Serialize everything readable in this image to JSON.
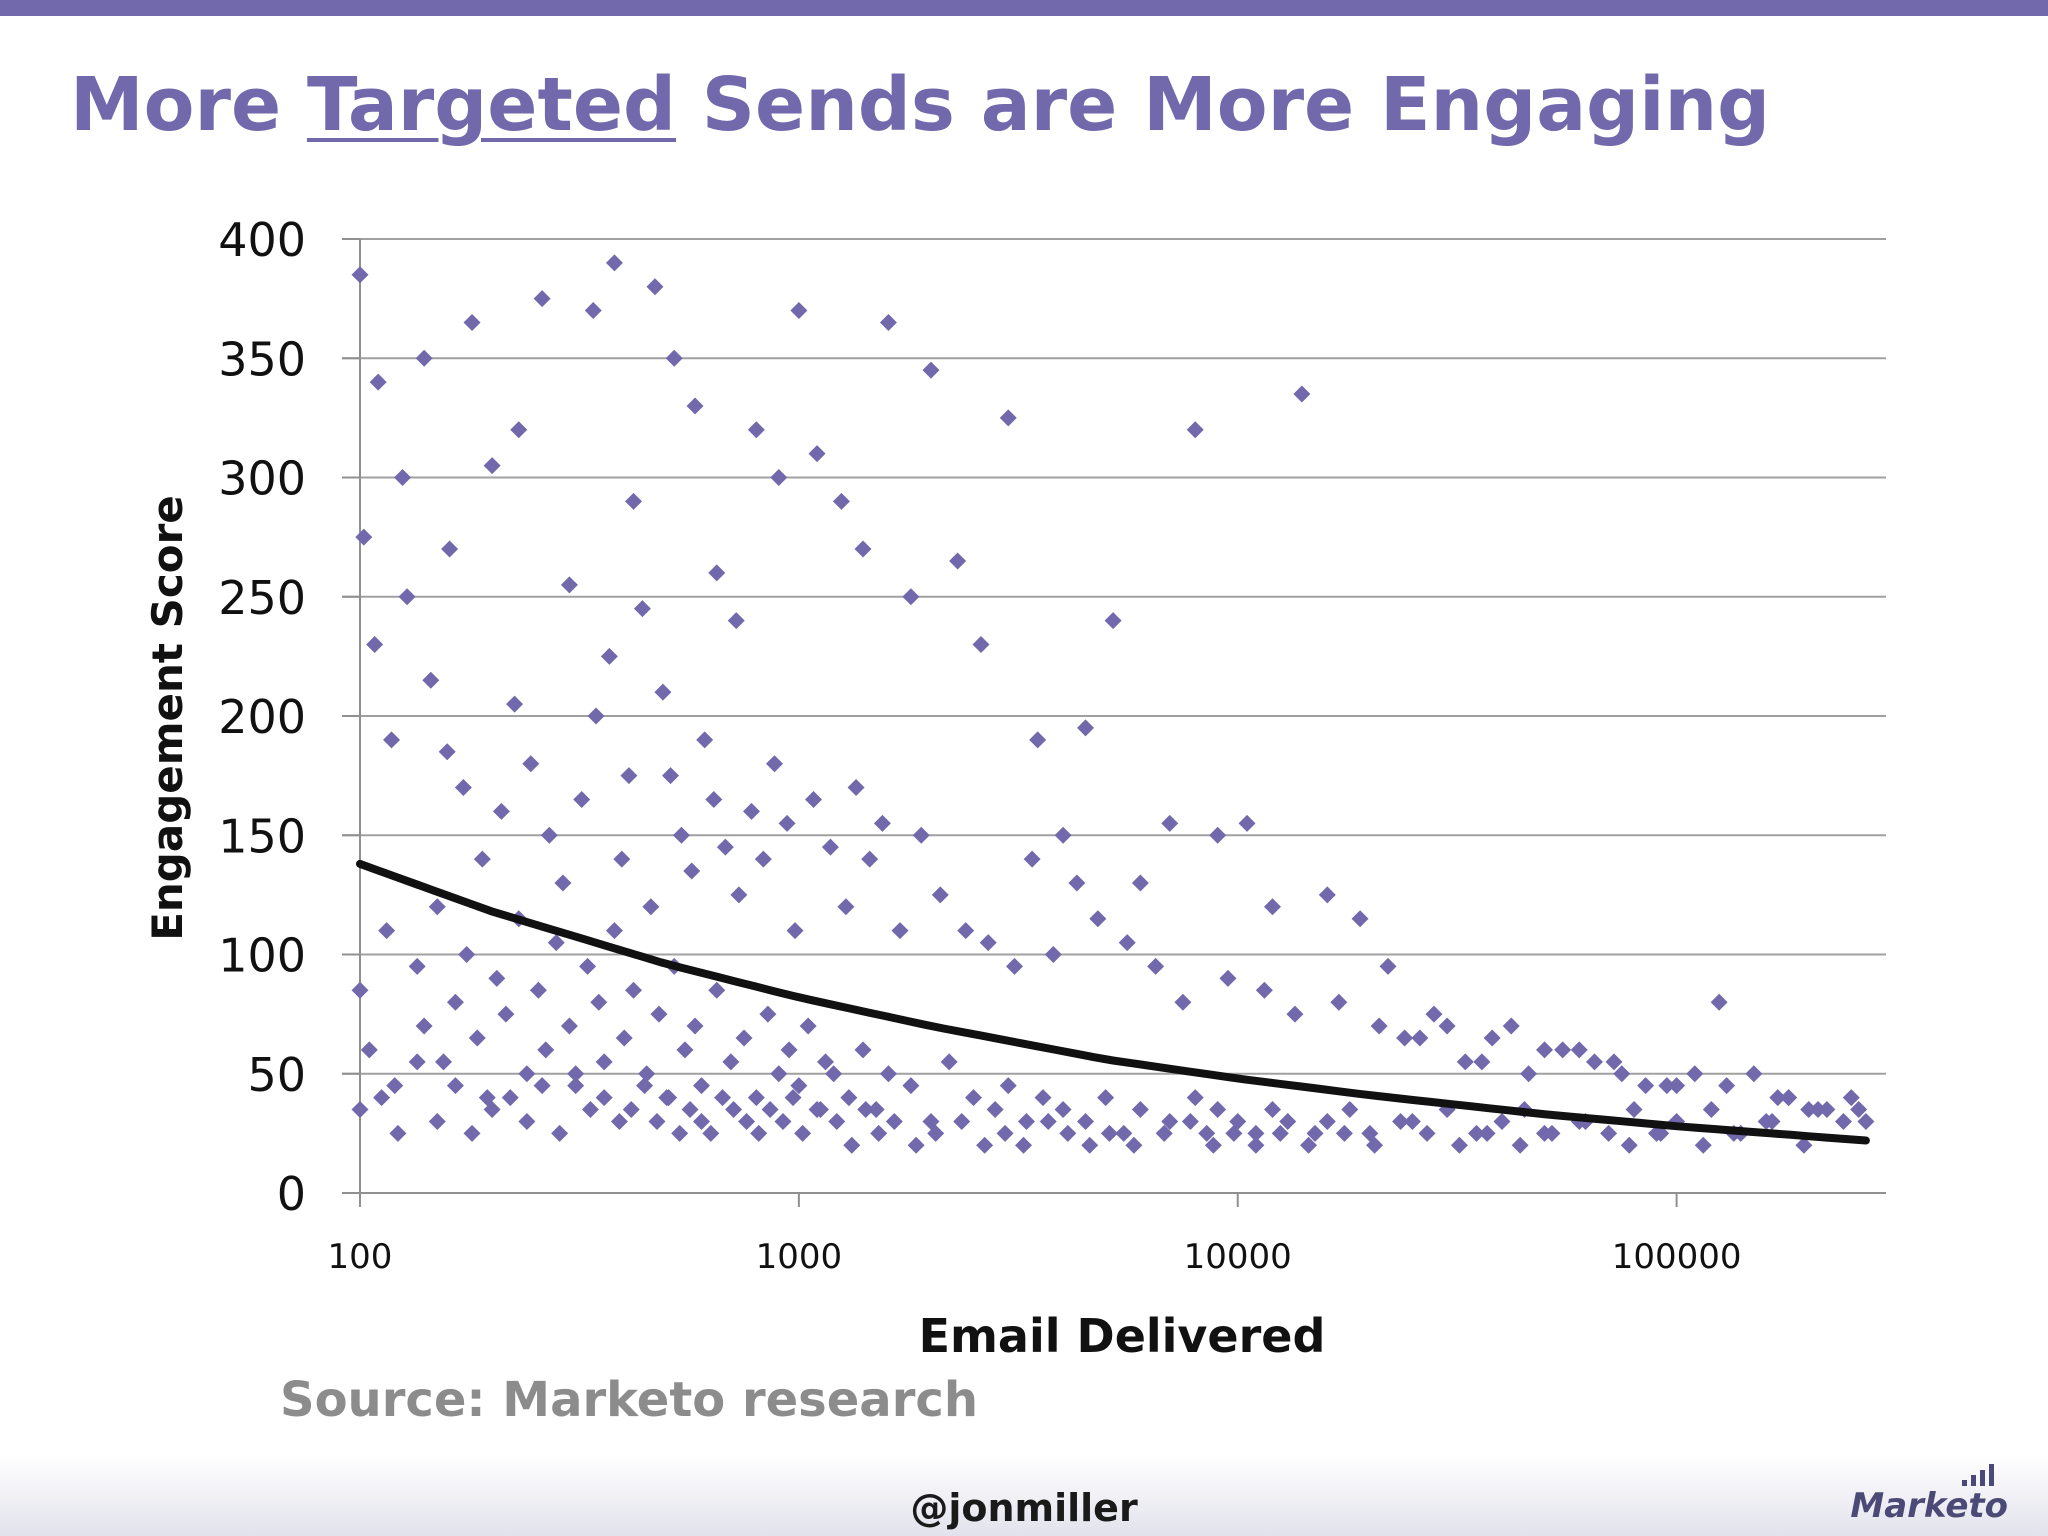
{
  "slide": {
    "title_pre": "More ",
    "title_emph": "Targeted",
    "title_post": " Sends are More Engaging",
    "source": "Source: Marketo research",
    "handle": "@jonmiller",
    "brand": "Marketo",
    "brand_mark": "Marketo logo bars"
  },
  "colors": {
    "accent": "#7269ad",
    "marker": "#7269ad",
    "trend": "#111111",
    "grid": "#a0a0a0"
  },
  "chart_data": {
    "type": "scatter",
    "xscale": "log",
    "xlabel": "Email Delivered",
    "ylabel": "Engagement Score",
    "xlim": [
      100,
      300000
    ],
    "ylim": [
      0,
      400
    ],
    "xticks": [
      100,
      1000,
      10000,
      100000
    ],
    "xtick_labels": [
      "100",
      "1000",
      "10000",
      "100000"
    ],
    "yticks": [
      0,
      50,
      100,
      150,
      200,
      250,
      300,
      350,
      400
    ],
    "ytick_labels": [
      "0",
      "50",
      "100",
      "150",
      "200",
      "250",
      "300",
      "350",
      "400"
    ],
    "grid": "horizontal",
    "legend": "none",
    "series": [
      {
        "marker": "diamond",
        "x": [
          100,
          105,
          115,
          120,
          135,
          140,
          150,
          155,
          165,
          175,
          185,
          195,
          205,
          215,
          230,
          240,
          255,
          265,
          280,
          300,
          310,
          330,
          350,
          360,
          380,
          400,
          420,
          450,
          480,
          500,
          520,
          550,
          580,
          600,
          650,
          700,
          750,
          800,
          850,
          900,
          950,
          1000,
          1050,
          1100,
          1150,
          1200,
          1300,
          1400,
          1500,
          1600,
          1800,
          2000,
          2200,
          2500,
          2800,
          3000,
          3300,
          3600,
          4000,
          4500,
          5000,
          5500,
          6000,
          7000,
          8000,
          8500,
          9000,
          10000,
          11000,
          12000,
          13000,
          15000,
          16000,
          18000,
          20000,
          25000,
          30000,
          35000,
          40000,
          45000,
          50000,
          60000,
          70000,
          80000,
          90000,
          100000,
          120000,
          140000,
          160000,
          180000,
          200000,
          250000,
          100,
          110,
          125,
          140,
          160,
          180,
          200,
          230,
          260,
          300,
          340,
          380,
          420,
          470,
          520,
          580,
          650,
          720,
          800,
          900,
          1000,
          1100,
          1250,
          1400,
          1600,
          1800,
          2000,
          2300,
          2600,
          3000,
          3500,
          4000,
          4500,
          5200,
          6000,
          7000,
          8000,
          9000,
          10500,
          12000,
          14000,
          16000,
          19000,
          22000,
          26000,
          30000,
          36000,
          42000,
          50000,
          60000,
          72000,
          85000,
          100000,
          125000,
          150000,
          180000,
          220000,
          270000,
          102,
          108,
          118,
          128,
          145,
          158,
          172,
          190,
          210,
          225,
          245,
          270,
          290,
          320,
          345,
          370,
          395,
          410,
          440,
          460,
          490,
          510,
          540,
          570,
          610,
          640,
          680,
          730,
          780,
          830,
          880,
          940,
          980,
          1080,
          1180,
          1280,
          1350,
          1450,
          1550,
          1700,
          1900,
          2100,
          2400,
          2700,
          3100,
          3400,
          3800,
          4300,
          4800,
          5600,
          6500,
          7500,
          9500,
          11500,
          13500,
          17000,
          21000,
          24000,
          28000,
          33000,
          38000,
          46000,
          55000,
          65000,
          75000,
          95000,
          110000,
          130000,
          170000,
          210000,
          240000,
          100,
          112,
          122,
          135,
          150,
          165,
          180,
          200,
          220,
          240,
          260,
          285,
          310,
          335,
          360,
          390,
          415,
          445,
          475,
          505,
          535,
          565,
          600,
          630,
          670,
          710,
          760,
          810,
          860,
          920,
          970,
          1020,
          1120,
          1220,
          1320,
          1420,
          1520,
          1650,
          1850,
          2050,
          2350,
          2650,
          2950,
          3250,
          3700,
          4100,
          4600,
          5100,
          5800,
          6800,
          7800,
          8800,
          9800,
          11000,
          12500,
          14500,
          17500,
          20500,
          23500,
          27000,
          32000,
          37000,
          44000,
          52000,
          62000,
          78000,
          92000,
          115000,
          135000,
          165000,
          195000,
          260000
        ],
        "y": [
          85,
          60,
          110,
          45,
          95,
          70,
          120,
          55,
          80,
          100,
          65,
          40,
          90,
          75,
          115,
          50,
          85,
          60,
          105,
          70,
          45,
          95,
          80,
          55,
          110,
          65,
          85,
          50,
          75,
          40,
          95,
          60,
          70,
          45,
          85,
          55,
          65,
          40,
          75,
          50,
          60,
          45,
          70,
          35,
          55,
          50,
          40,
          60,
          35,
          50,
          45,
          30,
          55,
          40,
          35,
          45,
          30,
          40,
          35,
          30,
          40,
          25,
          35,
          30,
          40,
          25,
          35,
          30,
          25,
          35,
          30,
          25,
          30,
          35,
          25,
          30,
          35,
          25,
          30,
          35,
          25,
          30,
          25,
          35,
          25,
          30,
          35,
          25,
          30,
          40,
          35,
          40,
          385,
          340,
          300,
          350,
          270,
          365,
          305,
          320,
          375,
          255,
          370,
          390,
          290,
          380,
          350,
          330,
          260,
          240,
          320,
          300,
          370,
          310,
          290,
          270,
          365,
          250,
          345,
          265,
          230,
          325,
          190,
          150,
          195,
          240,
          130,
          155,
          320,
          150,
          155,
          120,
          335,
          125,
          115,
          95,
          65,
          70,
          55,
          70,
          60,
          60,
          55,
          45,
          45,
          80,
          50,
          40,
          35,
          30,
          275,
          230,
          190,
          250,
          215,
          185,
          170,
          140,
          160,
          205,
          180,
          150,
          130,
          165,
          200,
          225,
          140,
          175,
          245,
          120,
          210,
          175,
          150,
          135,
          190,
          165,
          145,
          125,
          160,
          140,
          180,
          155,
          110,
          165,
          145,
          120,
          170,
          140,
          155,
          110,
          150,
          125,
          110,
          105,
          95,
          140,
          100,
          130,
          115,
          105,
          95,
          80,
          90,
          85,
          75,
          80,
          70,
          65,
          75,
          55,
          65,
          50,
          60,
          55,
          50,
          45,
          50,
          45,
          40,
          35,
          30,
          35,
          40,
          25,
          55,
          30,
          45,
          25,
          35,
          40,
          30,
          45,
          25,
          50,
          35,
          40,
          30,
          35,
          45,
          30,
          40,
          25,
          35,
          30,
          25,
          40,
          35,
          30,
          25,
          35,
          30,
          40,
          25,
          35,
          30,
          20,
          35,
          25,
          30,
          20,
          25,
          30,
          20,
          25,
          20,
          30,
          25,
          20,
          25,
          20,
          25,
          30,
          20,
          25,
          20,
          25,
          20,
          25,
          20,
          30,
          25,
          20,
          25,
          20,
          25,
          30,
          20,
          25,
          20,
          25,
          30,
          20,
          35
        ]
      }
    ],
    "trendline": {
      "type": "power",
      "x": [
        100,
        200,
        500,
        1000,
        2000,
        5000,
        10000,
        20000,
        50000,
        100000,
        270000
      ],
      "y": [
        138,
        118,
        96,
        82,
        70,
        56,
        48,
        41,
        33,
        28,
        22
      ]
    }
  }
}
